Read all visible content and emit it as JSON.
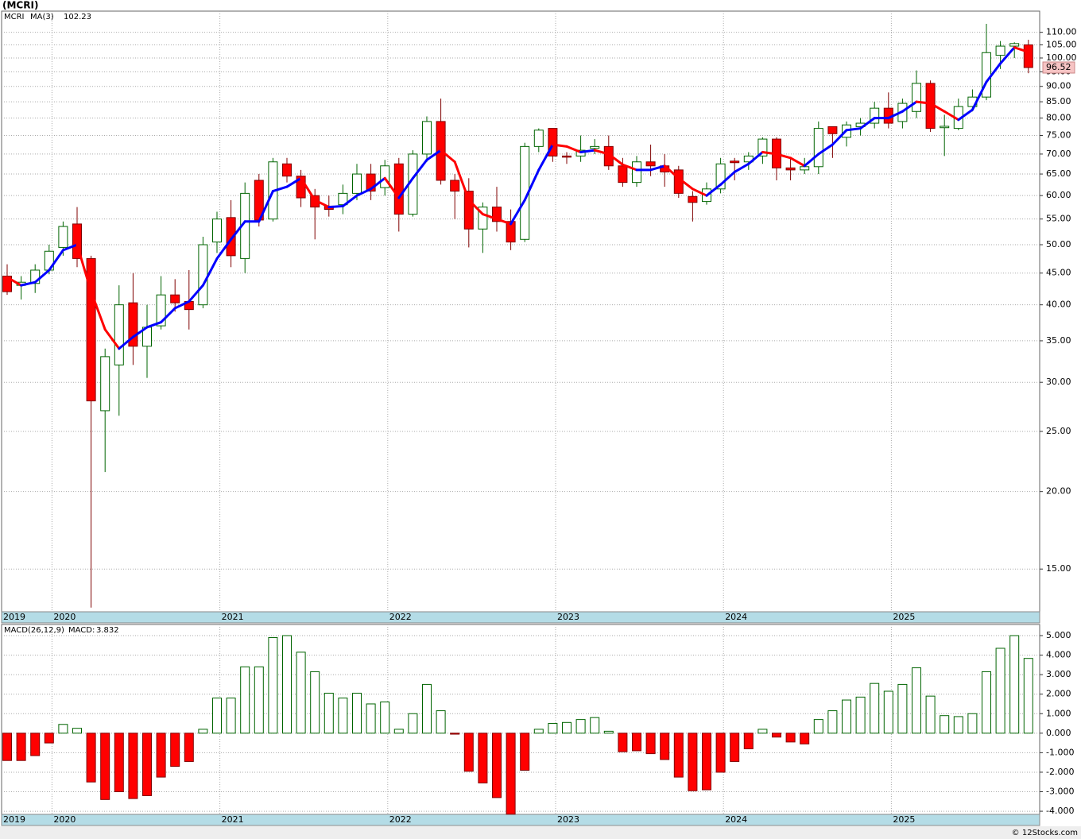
{
  "title": "(MCRI)",
  "source": "© 12Stocks.com",
  "chart_data": [
    {
      "type": "candlestick",
      "ticker": "MCRI",
      "log_scale": true,
      "grid": true,
      "up_color": "#006400",
      "down_color": "#ff0000",
      "categories": [
        "2019",
        null,
        null,
        null,
        "2020",
        null,
        null,
        null,
        null,
        null,
        null,
        null,
        null,
        null,
        null,
        null,
        "2021",
        null,
        null,
        null,
        null,
        null,
        null,
        null,
        null,
        null,
        null,
        null,
        "2022",
        null,
        null,
        null,
        null,
        null,
        null,
        null,
        null,
        null,
        null,
        null,
        "2023",
        null,
        null,
        null,
        null,
        null,
        null,
        null,
        null,
        null,
        null,
        null,
        "2024",
        null,
        null,
        null,
        null,
        null,
        null,
        null,
        null,
        null,
        null,
        null,
        "2025",
        null,
        null,
        null,
        null,
        null,
        null,
        null,
        null,
        null
      ],
      "open": [
        44.5,
        43,
        43.3,
        45.5,
        49.5,
        54,
        47.5,
        27,
        32,
        40.3,
        34.3,
        37,
        41.5,
        40.5,
        40,
        50.5,
        55.3,
        47.5,
        63.5,
        55,
        67.5,
        64.5,
        60,
        57.7,
        58,
        60.5,
        65,
        61.8,
        67.5,
        56,
        70,
        79,
        63.5,
        61,
        53,
        57.5,
        54.5,
        51,
        72,
        77,
        69.5,
        69.5,
        71.5,
        72,
        67,
        63,
        68,
        67,
        66,
        59.8,
        58.7,
        61.5,
        68.2,
        68,
        69.5,
        74,
        66.5,
        66,
        66.8,
        77.5,
        74.5,
        77.5,
        78.5,
        83,
        79,
        82,
        91,
        77.2,
        77,
        83.5,
        86.5,
        101,
        104.5,
        105
      ],
      "high": [
        46.5,
        44.5,
        46.5,
        50,
        54.5,
        57.5,
        48,
        34,
        43,
        45,
        40,
        44.5,
        44,
        45.5,
        51.5,
        56.5,
        59,
        63,
        65,
        69,
        69,
        66,
        61.5,
        60,
        62.5,
        67.5,
        67.5,
        68.5,
        69,
        71,
        80.5,
        86,
        65,
        64,
        58.5,
        62,
        57,
        73,
        77,
        77,
        70.5,
        75,
        74,
        75,
        69,
        69.5,
        72.5,
        70,
        67,
        61,
        63,
        69,
        69,
        70.5,
        74.5,
        74.5,
        69,
        69,
        79,
        77.5,
        79,
        80,
        85,
        88,
        86,
        95.5,
        92,
        81,
        86,
        89,
        113.5,
        106.5,
        106,
        107
      ],
      "low": [
        41.5,
        40.8,
        41.8,
        44.8,
        48,
        46,
        13,
        21.5,
        26.5,
        32,
        30.5,
        36.5,
        39,
        36.5,
        39.5,
        48.5,
        46,
        45,
        53.5,
        54.5,
        63,
        57.5,
        51,
        55.5,
        56,
        59,
        59,
        60,
        52.5,
        55.5,
        68,
        62.5,
        55,
        49.5,
        48.5,
        52.5,
        49,
        50.5,
        70.5,
        68,
        67.5,
        68,
        70,
        66,
        62,
        62,
        64.5,
        62,
        59.5,
        54.5,
        58,
        60.5,
        63.5,
        66,
        67.5,
        63.5,
        63.5,
        65,
        65,
        69,
        72,
        75,
        77,
        77,
        77,
        80,
        76,
        69.5,
        76.5,
        82,
        85.5,
        96,
        100,
        94.5
      ],
      "close": [
        42,
        43.5,
        45.5,
        48.8,
        53.5,
        47.5,
        28,
        33,
        40,
        34.3,
        36.8,
        41.5,
        40.3,
        39.3,
        50,
        55,
        48,
        60.5,
        54.8,
        68,
        64.5,
        59.5,
        57.5,
        57,
        60.5,
        65,
        61,
        67,
        56,
        70,
        79,
        63.5,
        61,
        53,
        57.5,
        54.5,
        50.5,
        72,
        76.5,
        69.5,
        69.2,
        71,
        72,
        67,
        63,
        68,
        67,
        65.5,
        60.5,
        58.5,
        61.5,
        67.5,
        67.8,
        69.5,
        74,
        66.5,
        66,
        66.8,
        77,
        75.5,
        78,
        78.5,
        83,
        78.5,
        84.5,
        91,
        77,
        77.6,
        83.5,
        86.5,
        102,
        104.5,
        105.5,
        96.52
      ],
      "ma": {
        "name": "MA(3)",
        "rising_color": "#0000ff",
        "falling_color": "#ff0000",
        "values": [
          44.3,
          43,
          43.5,
          45.5,
          49,
          50,
          42,
          36.5,
          34,
          35.5,
          36.8,
          37.5,
          39.5,
          40.5,
          43,
          47.5,
          51,
          54.5,
          54.5,
          61,
          62,
          64,
          59,
          57.5,
          57.7,
          60,
          61.5,
          64,
          59.5,
          64,
          68.5,
          71,
          68,
          59,
          56,
          55,
          54,
          59,
          66,
          72.5,
          72,
          70.5,
          71,
          70,
          67.3,
          66,
          66,
          67,
          64,
          61.5,
          60,
          62.5,
          65.5,
          67.5,
          70.5,
          70,
          69,
          67,
          70,
          72.5,
          76.5,
          77,
          80,
          80,
          82,
          85,
          84.5,
          82,
          79.5,
          82.5,
          91.5,
          98,
          104,
          102.23
        ]
      },
      "ylim": [
        12.8,
        119
      ],
      "yticks": [
        {
          "value": 15,
          "label": "15.00"
        },
        {
          "value": 20,
          "label": "20.00"
        },
        {
          "value": 25,
          "label": "25.00"
        },
        {
          "value": 30,
          "label": "30.00"
        },
        {
          "value": 35,
          "label": "35.00"
        },
        {
          "value": 40,
          "label": "40.00"
        },
        {
          "value": 45,
          "label": "45.00"
        },
        {
          "value": 50,
          "label": "50.00"
        },
        {
          "value": 55,
          "label": "55.00"
        },
        {
          "value": 60,
          "label": "60.00"
        },
        {
          "value": 65,
          "label": "65.00"
        },
        {
          "value": 70,
          "label": "70.00"
        },
        {
          "value": 75,
          "label": "75.00"
        },
        {
          "value": 80,
          "label": "80.00"
        },
        {
          "value": 85,
          "label": "85.00"
        },
        {
          "value": 90,
          "label": "90.00"
        },
        {
          "value": 95,
          "label": "95.00"
        },
        {
          "value": 100,
          "label": "100.00"
        },
        {
          "value": 105,
          "label": "105.00"
        },
        {
          "value": 110,
          "label": "110.00"
        }
      ]
    },
    {
      "type": "bar",
      "title": "MACD(26,12,9)",
      "grid": true,
      "up_color": "#006400",
      "down_color": "#ff0000",
      "categories": [
        "2019",
        null,
        null,
        null,
        "2020",
        null,
        null,
        null,
        null,
        null,
        null,
        null,
        null,
        null,
        null,
        null,
        "2021",
        null,
        null,
        null,
        null,
        null,
        null,
        null,
        null,
        null,
        null,
        null,
        "2022",
        null,
        null,
        null,
        null,
        null,
        null,
        null,
        null,
        null,
        null,
        null,
        "2023",
        null,
        null,
        null,
        null,
        null,
        null,
        null,
        null,
        null,
        null,
        null,
        "2024",
        null,
        null,
        null,
        null,
        null,
        null,
        null,
        null,
        null,
        null,
        null,
        "2025",
        null,
        null,
        null,
        null,
        null,
        null,
        null,
        null,
        null
      ],
      "series": [
        {
          "name": "MACD:",
          "values": [
            -1.4,
            -1.4,
            -1.15,
            -0.5,
            0.45,
            0.25,
            -2.5,
            -3.4,
            -3.0,
            -3.35,
            -3.2,
            -2.25,
            -1.7,
            -1.45,
            0.2,
            1.8,
            1.8,
            3.4,
            3.4,
            4.9,
            5.0,
            4.15,
            3.15,
            2.05,
            1.8,
            2.05,
            1.5,
            1.6,
            0.2,
            1.0,
            2.5,
            1.15,
            -0.05,
            -1.95,
            -2.55,
            -3.3,
            -4.15,
            -1.9,
            0.2,
            0.5,
            0.55,
            0.7,
            0.8,
            0.1,
            -0.95,
            -0.9,
            -1.05,
            -1.35,
            -2.25,
            -2.95,
            -2.9,
            -2.0,
            -1.45,
            -0.8,
            0.2,
            -0.2,
            -0.45,
            -0.55,
            0.7,
            1.15,
            1.7,
            1.85,
            2.55,
            2.15,
            2.5,
            3.35,
            1.9,
            0.9,
            0.85,
            1.0,
            3.15,
            4.35,
            5.0,
            3.832
          ]
        }
      ],
      "ylim": [
        -4.16,
        5.57
      ],
      "yticks": [
        {
          "value": 5,
          "label": "5.000"
        },
        {
          "value": 4,
          "label": "4.000"
        },
        {
          "value": 3,
          "label": "3.000"
        },
        {
          "value": 2,
          "label": "2.000"
        },
        {
          "value": 1,
          "label": "1.000"
        },
        {
          "value": 0,
          "label": "0.000"
        },
        {
          "value": -1,
          "label": "-1.000"
        },
        {
          "value": -2,
          "label": "-2.000"
        },
        {
          "value": -3,
          "label": "-3.000"
        },
        {
          "value": -4,
          "label": "-4.000"
        }
      ]
    }
  ]
}
